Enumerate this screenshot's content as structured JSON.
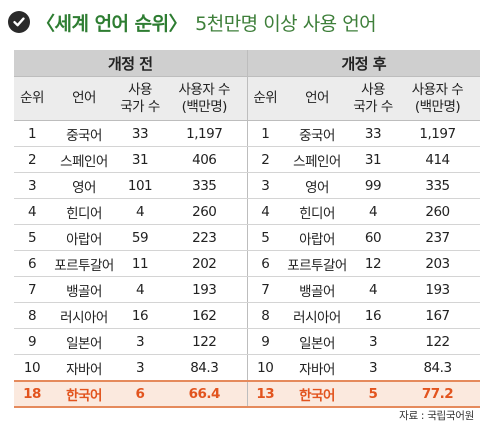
{
  "title": {
    "main": "〈세계 언어 순위〉",
    "sub": "5천만명 이상 사용 언어"
  },
  "groups": {
    "before": "개정 전",
    "after": "개정 후"
  },
  "columns": {
    "rank": "순위",
    "language": "언어",
    "countries": "사용\n국가 수",
    "speakers": "사용자 수\n(백만명)"
  },
  "rows": [
    {
      "b_rank": "1",
      "b_lang": "중국어",
      "b_countries": "33",
      "b_speakers": "1,197",
      "a_rank": "1",
      "a_lang": "중국어",
      "a_countries": "33",
      "a_speakers": "1,197"
    },
    {
      "b_rank": "2",
      "b_lang": "스페인어",
      "b_countries": "31",
      "b_speakers": "406",
      "a_rank": "2",
      "a_lang": "스페인어",
      "a_countries": "31",
      "a_speakers": "414"
    },
    {
      "b_rank": "3",
      "b_lang": "영어",
      "b_countries": "101",
      "b_speakers": "335",
      "a_rank": "3",
      "a_lang": "영어",
      "a_countries": "99",
      "a_speakers": "335"
    },
    {
      "b_rank": "4",
      "b_lang": "힌디어",
      "b_countries": "4",
      "b_speakers": "260",
      "a_rank": "4",
      "a_lang": "힌디어",
      "a_countries": "4",
      "a_speakers": "260"
    },
    {
      "b_rank": "5",
      "b_lang": "아랍어",
      "b_countries": "59",
      "b_speakers": "223",
      "a_rank": "5",
      "a_lang": "아랍어",
      "a_countries": "60",
      "a_speakers": "237"
    },
    {
      "b_rank": "6",
      "b_lang": "포르투갈어",
      "b_countries": "11",
      "b_speakers": "202",
      "a_rank": "6",
      "a_lang": "포르투갈어",
      "a_countries": "12",
      "a_speakers": "203"
    },
    {
      "b_rank": "7",
      "b_lang": "뱅골어",
      "b_countries": "4",
      "b_speakers": "193",
      "a_rank": "7",
      "a_lang": "뱅골어",
      "a_countries": "4",
      "a_speakers": "193"
    },
    {
      "b_rank": "8",
      "b_lang": "러시아어",
      "b_countries": "16",
      "b_speakers": "162",
      "a_rank": "8",
      "a_lang": "러시아어",
      "a_countries": "16",
      "a_speakers": "167"
    },
    {
      "b_rank": "9",
      "b_lang": "일본어",
      "b_countries": "3",
      "b_speakers": "122",
      "a_rank": "9",
      "a_lang": "일본어",
      "a_countries": "3",
      "a_speakers": "122"
    },
    {
      "b_rank": "10",
      "b_lang": "자바어",
      "b_countries": "3",
      "b_speakers": "84.3",
      "a_rank": "10",
      "a_lang": "자바어",
      "a_countries": "3",
      "a_speakers": "84.3"
    }
  ],
  "korea": {
    "b_rank": "18",
    "b_lang": "한국어",
    "b_countries": "6",
    "b_speakers": "66.4",
    "a_rank": "13",
    "a_lang": "한국어",
    "a_countries": "5",
    "a_speakers": "77.2"
  },
  "source": "자료 : 국립국어원",
  "colors": {
    "title": "#2e7d32",
    "highlight_text": "#e2541e",
    "highlight_bg": "#fbe9de",
    "header_bg": "#cfcfcf",
    "subheader_bg": "#ececec"
  }
}
